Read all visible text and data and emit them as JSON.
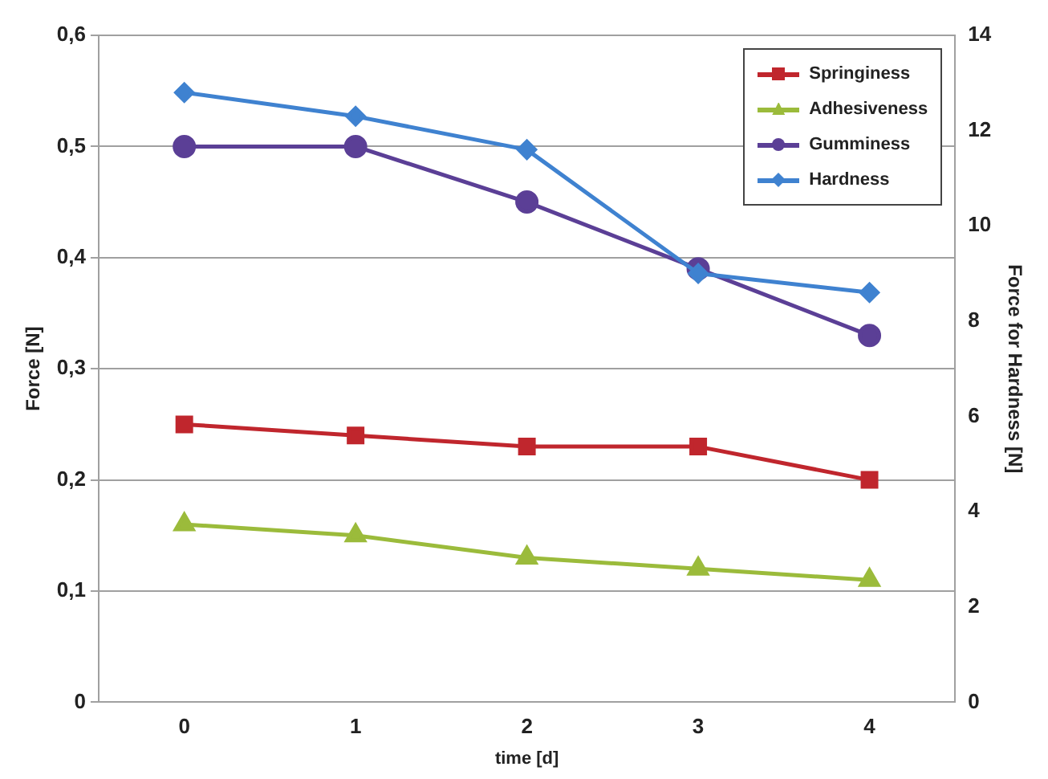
{
  "chart_data": {
    "type": "line",
    "xlabel": "time [d]",
    "ylabel": "Force [N]",
    "y2label": "Force for Hardness [N]",
    "categories": [
      "0",
      "1",
      "2",
      "3",
      "4"
    ],
    "series": [
      {
        "name": "Springiness",
        "color": "#c0262d",
        "marker": "square",
        "values": [
          0.25,
          0.24,
          0.23,
          0.23,
          0.2
        ]
      },
      {
        "name": "Adhesiveness",
        "color": "#9bbb3b",
        "marker": "triangle",
        "values": [
          0.16,
          0.15,
          0.13,
          0.12,
          0.11
        ]
      },
      {
        "name": "Gumminess",
        "color": "#5b3f96",
        "marker": "circle",
        "values": [
          0.5,
          0.5,
          0.45,
          0.39,
          0.33
        ]
      },
      {
        "name": "Hardness",
        "color": "#3f82d0",
        "marker": "diamond",
        "axis": "y2",
        "values": [
          12.8,
          12.3,
          11.6,
          9.0,
          8.6
        ]
      }
    ],
    "ylim": [
      0,
      0.6
    ],
    "yticks": [
      0,
      {
        "value": 0.1,
        "label": "0,1"
      },
      {
        "value": 0.2,
        "label": "0,2"
      },
      {
        "value": 0.3,
        "label": "0,3"
      },
      {
        "value": 0.4,
        "label": "0,4"
      },
      {
        "value": 0.5,
        "label": "0,5"
      },
      {
        "value": 0.6,
        "label": "0,6"
      }
    ],
    "y2lim": [
      0,
      14
    ],
    "y2ticks": [
      0,
      2,
      4,
      6,
      8,
      10,
      12,
      14
    ],
    "grid": "y",
    "legend": "top right",
    "line_style": "solid"
  }
}
